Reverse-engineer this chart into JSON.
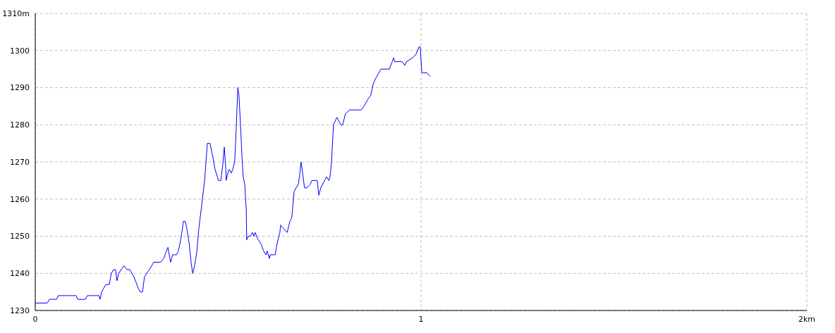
{
  "chart_data": {
    "type": "line",
    "x": [
      0,
      0.031,
      0.037,
      0.055,
      0.06,
      0.106,
      0.11,
      0.13,
      0.135,
      0.165,
      0.168,
      0.172,
      0.183,
      0.192,
      0.197,
      0.203,
      0.208,
      0.212,
      0.216,
      0.223,
      0.23,
      0.238,
      0.245,
      0.256,
      0.267,
      0.272,
      0.278,
      0.283,
      0.289,
      0.296,
      0.307,
      0.325,
      0.333,
      0.34,
      0.344,
      0.349,
      0.351,
      0.356,
      0.366,
      0.371,
      0.377,
      0.38,
      0.384,
      0.389,
      0.393,
      0.399,
      0.404,
      0.408,
      0.413,
      0.419,
      0.424,
      0.431,
      0.439,
      0.446,
      0.453,
      0.461,
      0.466,
      0.472,
      0.475,
      0.481,
      0.486,
      0.49,
      0.494,
      0.495,
      0.499,
      0.503,
      0.508,
      0.512,
      0.517,
      0.521,
      0.525,
      0.528,
      0.532,
      0.536,
      0.539,
      0.543,
      0.547,
      0.548,
      0.552,
      0.558,
      0.563,
      0.567,
      0.57,
      0.578,
      0.585,
      0.592,
      0.598,
      0.601,
      0.607,
      0.609,
      0.622,
      0.625,
      0.629,
      0.634,
      0.636,
      0.644,
      0.653,
      0.66,
      0.665,
      0.671,
      0.676,
      0.682,
      0.686,
      0.689,
      0.693,
      0.698,
      0.704,
      0.713,
      0.717,
      0.731,
      0.735,
      0.74,
      0.75,
      0.755,
      0.761,
      0.764,
      0.768,
      0.773,
      0.782,
      0.792,
      0.797,
      0.804,
      0.815,
      0.845,
      0.852,
      0.863,
      0.87,
      0.876,
      0.885,
      0.896,
      0.918,
      0.929,
      0.932,
      0.951,
      0.958,
      0.962,
      0.978,
      0.987,
      0.995,
      0.998,
      1.002,
      1.015,
      1.024
    ],
    "series": [
      {
        "color": "#0000ff",
        "values": [
          1232,
          1232,
          1233,
          1233,
          1234,
          1234,
          1233,
          1233,
          1234,
          1234,
          1233,
          1235,
          1237,
          1237,
          1240,
          1241,
          1241,
          1238,
          1240,
          1241,
          1242,
          1241,
          1241,
          1239,
          1236,
          1235,
          1235,
          1239,
          1240,
          1241,
          1243,
          1243,
          1244,
          1246,
          1247,
          1244,
          1243,
          1245,
          1245,
          1246,
          1249,
          1251,
          1254,
          1254,
          1252,
          1248,
          1243,
          1240,
          1242,
          1246,
          1252,
          1258,
          1265,
          1275,
          1275,
          1271,
          1268,
          1266,
          1265,
          1265,
          1269,
          1274,
          1268,
          1265,
          1267,
          1268,
          1267,
          1268,
          1270,
          1279,
          1290,
          1288,
          1280,
          1271,
          1266,
          1264,
          1257,
          1249,
          1250,
          1250,
          1251,
          1250,
          1251,
          1249,
          1248,
          1246,
          1245,
          1246,
          1244,
          1245,
          1245,
          1247,
          1249,
          1251,
          1253,
          1252,
          1251,
          1254,
          1255,
          1262,
          1263,
          1264,
          1267,
          1270,
          1267,
          1263,
          1263,
          1264,
          1265,
          1265,
          1261,
          1263,
          1265,
          1266,
          1265,
          1266,
          1270,
          1280,
          1282,
          1280,
          1280,
          1283,
          1284,
          1284,
          1285,
          1287,
          1288,
          1291,
          1293,
          1295,
          1295,
          1298,
          1297,
          1297,
          1296,
          1297,
          1298,
          1299,
          1301,
          1301,
          1294,
          1294,
          1293
        ]
      }
    ],
    "xlim": [
      0,
      2
    ],
    "xticks": [
      0,
      1,
      {
        "value": 2,
        "label": "2km"
      }
    ],
    "ylim": [
      1230,
      1310
    ],
    "yticks": [
      1230,
      1240,
      1250,
      1260,
      1270,
      1280,
      1290,
      1300,
      {
        "value": 1310,
        "label": "1310m"
      }
    ],
    "grid": true,
    "line_style": "solid",
    "marker": "none"
  }
}
